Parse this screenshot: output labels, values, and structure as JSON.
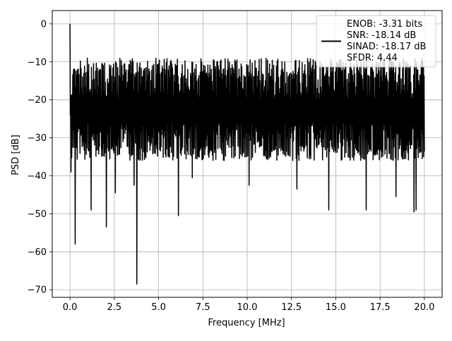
{
  "chart_data": {
    "type": "line",
    "title": "",
    "xlabel": "Frequency [MHz]",
    "ylabel": "PSD [dB]",
    "xlim": [
      -1.0,
      21.0
    ],
    "ylim": [
      -72.0,
      3.5
    ],
    "x_ticks": [
      0.0,
      2.5,
      5.0,
      7.5,
      10.0,
      12.5,
      15.0,
      17.5,
      20.0
    ],
    "x_tick_labels": [
      "0.0",
      "2.5",
      "5.0",
      "7.5",
      "10.0",
      "12.5",
      "15.0",
      "17.5",
      "20.0"
    ],
    "y_ticks": [
      0,
      -10,
      -20,
      -30,
      -40,
      -50,
      -60,
      -70
    ],
    "y_tick_labels": [
      "0",
      "−10",
      "−20",
      "−30",
      "−40",
      "−50",
      "−60",
      "−70"
    ],
    "grid": true,
    "legend_position": "top-right",
    "legend_entries": [
      "ENOB: -3.31 bits",
      "SNR: -18.14 dB",
      "SINAD: -18.17 dB",
      "SFDR: 4.44"
    ],
    "series": [
      {
        "color": "#000000",
        "x_range": [
          0.0,
          20.0
        ],
        "num_points": 1024,
        "band_upper": [
          -14,
          -9
        ],
        "band_lower": [
          -36,
          -32
        ],
        "peak": {
          "x": 0.0,
          "y": 0.0
        },
        "dips": [
          {
            "x": 0.05,
            "y": -39
          },
          {
            "x": 0.3,
            "y": -58
          },
          {
            "x": 1.2,
            "y": -49
          },
          {
            "x": 2.05,
            "y": -53.5
          },
          {
            "x": 2.55,
            "y": -44.5
          },
          {
            "x": 3.6,
            "y": -42.5
          },
          {
            "x": 3.78,
            "y": -68.5
          },
          {
            "x": 6.1,
            "y": -50.5
          },
          {
            "x": 6.9,
            "y": -40.5
          },
          {
            "x": 10.1,
            "y": -42.5
          },
          {
            "x": 12.8,
            "y": -43.5
          },
          {
            "x": 14.6,
            "y": -49
          },
          {
            "x": 16.7,
            "y": -49
          },
          {
            "x": 18.4,
            "y": -45.5
          },
          {
            "x": 19.4,
            "y": -49.5
          },
          {
            "x": 19.55,
            "y": -49
          }
        ]
      }
    ]
  }
}
